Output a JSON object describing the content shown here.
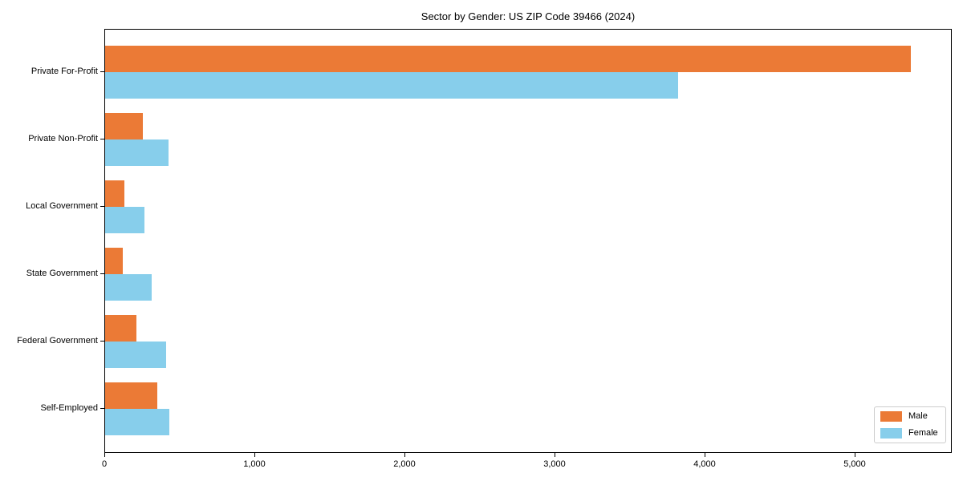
{
  "title": "Sector by Gender: US ZIP Code 39466 (2024)",
  "colors": {
    "male": "#EB7A36",
    "female": "#87CEEB",
    "axis": "#000000",
    "legend_border": "#CCCCCC",
    "background": "#FFFFFF"
  },
  "chart_data": {
    "type": "bar",
    "orientation": "horizontal",
    "title": "Sector by Gender: US ZIP Code 39466 (2024)",
    "xlabel": "",
    "ylabel": "",
    "categories": [
      "Private For-Profit",
      "Private Non-Profit",
      "Local Government",
      "State Government",
      "Federal Government",
      "Self-Employed"
    ],
    "series": [
      {
        "name": "Male",
        "color": "#EB7A36",
        "values": [
          5370,
          250,
          130,
          120,
          210,
          350
        ]
      },
      {
        "name": "Female",
        "color": "#87CEEB",
        "values": [
          3820,
          425,
          260,
          310,
          405,
          430
        ]
      }
    ],
    "xlim": [
      0,
      5647
    ],
    "xticks": [
      {
        "value": 0,
        "label": "0"
      },
      {
        "value": 1000,
        "label": "1,000"
      },
      {
        "value": 2000,
        "label": "2,000"
      },
      {
        "value": 3000,
        "label": "3,000"
      },
      {
        "value": 4000,
        "label": "4,000"
      },
      {
        "value": 5000,
        "label": "5,000"
      }
    ],
    "grid": false,
    "legend": {
      "position": "lower right",
      "entries": [
        "Male",
        "Female"
      ]
    }
  }
}
